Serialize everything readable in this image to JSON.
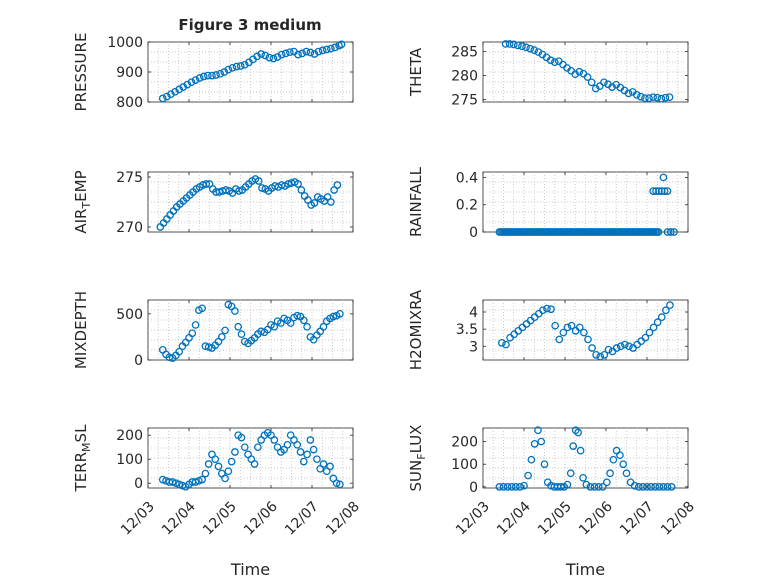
{
  "figure_title": "Figure 3 medium",
  "colors": {
    "marker": "#0072bd",
    "axis": "#262626",
    "grid": "#b8b8b8"
  },
  "chart_data": [
    {
      "type": "scatter",
      "ylabel": "PRESSURE",
      "ylim": [
        800,
        1000
      ],
      "yticks": [
        800,
        900,
        1000
      ],
      "xlim": [
        0,
        5
      ],
      "xticklabels": [],
      "xlabel": "",
      "grid": "on",
      "x": [
        0.36,
        0.46,
        0.56,
        0.66,
        0.76,
        0.86,
        0.96,
        1.06,
        1.16,
        1.26,
        1.36,
        1.46,
        1.56,
        1.66,
        1.76,
        1.86,
        1.96,
        2.06,
        2.16,
        2.26,
        2.36,
        2.46,
        2.56,
        2.66,
        2.76,
        2.86,
        2.96,
        3.06,
        3.16,
        3.26,
        3.36,
        3.46,
        3.56,
        3.66,
        3.76,
        3.86,
        3.96,
        4.06,
        4.16,
        4.26,
        4.36,
        4.46,
        4.56,
        4.66,
        4.72
      ],
      "y": [
        812,
        818,
        826,
        834,
        842,
        850,
        858,
        866,
        873,
        880,
        885,
        888,
        888,
        890,
        894,
        900,
        908,
        914,
        918,
        920,
        924,
        932,
        942,
        952,
        960,
        955,
        948,
        945,
        950,
        958,
        962,
        966,
        968,
        958,
        962,
        968,
        965,
        960,
        968,
        972,
        975,
        978,
        982,
        988,
        992
      ]
    },
    {
      "type": "scatter",
      "ylabel": "THETA",
      "ylim": [
        274.5,
        287
      ],
      "yticks": [
        275,
        280,
        285
      ],
      "xlim": [
        0,
        5
      ],
      "xticklabels": [],
      "xlabel": "",
      "grid": "on",
      "x": [
        0.55,
        0.65,
        0.75,
        0.85,
        0.95,
        1.05,
        1.15,
        1.25,
        1.35,
        1.45,
        1.55,
        1.65,
        1.75,
        1.85,
        1.95,
        2.05,
        2.15,
        2.25,
        2.35,
        2.45,
        2.55,
        2.65,
        2.75,
        2.85,
        2.95,
        3.05,
        3.15,
        3.25,
        3.35,
        3.45,
        3.55,
        3.65,
        3.75,
        3.85,
        3.95,
        4.05,
        4.15,
        4.25,
        4.35,
        4.45,
        4.55
      ],
      "y": [
        286.6,
        286.6,
        286.5,
        286.3,
        286.1,
        285.9,
        285.6,
        285.3,
        284.9,
        284.4,
        283.8,
        283.2,
        282.8,
        283.0,
        282.3,
        281.6,
        281.0,
        280.3,
        280.8,
        280.4,
        279.7,
        278.6,
        277.3,
        277.8,
        278.6,
        278.2,
        277.6,
        278.1,
        277.5,
        276.9,
        276.3,
        276.6,
        276.0,
        275.6,
        275.3,
        275.3,
        275.5,
        275.4,
        275.2,
        275.4,
        275.5
      ]
    },
    {
      "type": "scatter",
      "ylabel": "AIR_TEMP",
      "ylim": [
        269.5,
        275.5
      ],
      "yticks": [
        270,
        275
      ],
      "xlim": [
        0,
        5
      ],
      "xticklabels": [],
      "xlabel": "",
      "grid": "on",
      "x": [
        0.3,
        0.38,
        0.46,
        0.54,
        0.62,
        0.7,
        0.78,
        0.86,
        0.94,
        1.02,
        1.1,
        1.18,
        1.26,
        1.34,
        1.42,
        1.5,
        1.58,
        1.66,
        1.74,
        1.82,
        1.9,
        1.98,
        2.06,
        2.14,
        2.22,
        2.3,
        2.38,
        2.46,
        2.54,
        2.62,
        2.7,
        2.78,
        2.86,
        2.94,
        3.02,
        3.1,
        3.18,
        3.26,
        3.34,
        3.42,
        3.5,
        3.58,
        3.66,
        3.74,
        3.82,
        3.9,
        3.98,
        4.06,
        4.14,
        4.22,
        4.3,
        4.38,
        4.46,
        4.54,
        4.62
      ],
      "y": [
        270.0,
        270.4,
        270.8,
        271.2,
        271.6,
        272.0,
        272.3,
        272.6,
        272.9,
        273.2,
        273.5,
        273.8,
        274.0,
        274.2,
        274.3,
        274.3,
        273.8,
        273.5,
        273.5,
        273.6,
        273.7,
        273.6,
        273.4,
        273.8,
        273.6,
        273.7,
        274.0,
        274.3,
        274.6,
        274.8,
        274.6,
        273.9,
        273.8,
        273.6,
        273.9,
        274.1,
        274.0,
        274.2,
        274.1,
        274.3,
        274.4,
        274.5,
        274.3,
        273.7,
        273.1,
        272.7,
        272.2,
        272.4,
        273.0,
        272.8,
        272.6,
        273.0,
        272.5,
        273.7,
        274.2
      ]
    },
    {
      "type": "scatter",
      "ylabel": "RAINFALL",
      "ylim": [
        0,
        0.44
      ],
      "yticks": [
        0,
        0.2,
        0.4
      ],
      "xlim": [
        0,
        5
      ],
      "xticklabels": [],
      "xlabel": "",
      "grid": "on",
      "rain_segment": {
        "x_start": 0.4,
        "x_end": 4.3,
        "y": 0
      },
      "x": [
        4.15,
        4.22,
        4.29,
        4.36,
        4.43,
        4.5,
        4.4,
        4.5,
        4.58,
        4.66
      ],
      "y": [
        0.3,
        0.3,
        0.3,
        0.3,
        0.3,
        0.3,
        0.4,
        0,
        0,
        0
      ]
    },
    {
      "type": "scatter",
      "ylabel": "MIXDEPTH",
      "ylim": [
        0,
        650
      ],
      "yticks": [
        0,
        500
      ],
      "xlim": [
        0,
        5
      ],
      "xticklabels": [],
      "xlabel": "",
      "grid": "on",
      "x": [
        0.36,
        0.44,
        0.52,
        0.6,
        0.68,
        0.76,
        0.84,
        0.92,
        1.0,
        1.08,
        1.16,
        1.24,
        1.32,
        1.4,
        1.48,
        1.56,
        1.64,
        1.72,
        1.8,
        1.88,
        1.96,
        2.04,
        2.12,
        2.2,
        2.28,
        2.36,
        2.44,
        2.52,
        2.6,
        2.68,
        2.76,
        2.84,
        2.92,
        3.0,
        3.08,
        3.16,
        3.24,
        3.32,
        3.4,
        3.48,
        3.56,
        3.64,
        3.72,
        3.8,
        3.88,
        3.96,
        4.04,
        4.12,
        4.2,
        4.28,
        4.36,
        4.44,
        4.52,
        4.6,
        4.68
      ],
      "y": [
        110,
        60,
        30,
        20,
        50,
        90,
        150,
        190,
        240,
        290,
        380,
        540,
        560,
        150,
        140,
        130,
        160,
        200,
        250,
        320,
        600,
        580,
        530,
        360,
        280,
        200,
        180,
        210,
        240,
        280,
        310,
        300,
        330,
        380,
        360,
        420,
        400,
        450,
        430,
        400,
        460,
        480,
        470,
        430,
        360,
        250,
        220,
        270,
        310,
        360,
        420,
        450,
        470,
        480,
        500
      ]
    },
    {
      "type": "scatter",
      "ylabel": "H2OMIXRA",
      "ylim": [
        2.6,
        4.35
      ],
      "yticks": [
        3,
        3.5,
        4
      ],
      "xlim": [
        0,
        5
      ],
      "xticklabels": [],
      "xlabel": "",
      "grid": "on",
      "x": [
        0.46,
        0.56,
        0.66,
        0.76,
        0.86,
        0.96,
        1.06,
        1.16,
        1.26,
        1.36,
        1.46,
        1.56,
        1.66,
        1.76,
        1.86,
        1.96,
        2.06,
        2.16,
        2.26,
        2.36,
        2.46,
        2.56,
        2.66,
        2.76,
        2.86,
        2.96,
        3.06,
        3.16,
        3.26,
        3.36,
        3.46,
        3.56,
        3.66,
        3.76,
        3.86,
        3.96,
        4.06,
        4.16,
        4.26,
        4.36,
        4.46,
        4.56
      ],
      "y": [
        3.1,
        3.05,
        3.25,
        3.35,
        3.45,
        3.55,
        3.65,
        3.75,
        3.85,
        3.95,
        4.05,
        4.1,
        4.08,
        3.6,
        3.2,
        3.4,
        3.55,
        3.6,
        3.45,
        3.55,
        3.4,
        3.2,
        2.95,
        2.75,
        2.7,
        2.75,
        2.9,
        2.85,
        2.95,
        3.0,
        3.05,
        3.0,
        2.95,
        3.05,
        3.15,
        3.25,
        3.4,
        3.55,
        3.7,
        3.85,
        4.05,
        4.2
      ]
    },
    {
      "type": "scatter",
      "ylabel": "TERR_MSL",
      "ylim": [
        -20,
        230
      ],
      "yticks": [
        0,
        100,
        200
      ],
      "xlim": [
        0,
        5
      ],
      "xticklabels": [
        "12/03",
        "12/04",
        "12/05",
        "12/06",
        "12/07",
        "12/08"
      ],
      "xlabel": "Time",
      "grid": "on",
      "x": [
        0.36,
        0.44,
        0.52,
        0.6,
        0.68,
        0.76,
        0.84,
        0.92,
        1.0,
        1.08,
        1.16,
        1.24,
        1.32,
        1.4,
        1.48,
        1.56,
        1.64,
        1.72,
        1.8,
        1.88,
        1.96,
        2.04,
        2.12,
        2.2,
        2.28,
        2.36,
        2.44,
        2.52,
        2.6,
        2.68,
        2.76,
        2.84,
        2.92,
        3.0,
        3.08,
        3.16,
        3.24,
        3.32,
        3.4,
        3.48,
        3.56,
        3.64,
        3.72,
        3.8,
        3.88,
        3.96,
        4.04,
        4.12,
        4.2,
        4.28,
        4.36,
        4.44,
        4.52,
        4.6,
        4.68
      ],
      "y": [
        15,
        10,
        5,
        5,
        0,
        -5,
        -10,
        -15,
        -5,
        5,
        5,
        10,
        15,
        40,
        80,
        120,
        100,
        70,
        40,
        20,
        50,
        90,
        130,
        200,
        190,
        150,
        120,
        100,
        80,
        150,
        180,
        200,
        210,
        200,
        180,
        150,
        130,
        140,
        160,
        200,
        180,
        160,
        130,
        90,
        120,
        180,
        140,
        100,
        60,
        80,
        50,
        70,
        20,
        0,
        -5
      ]
    },
    {
      "type": "scatter",
      "ylabel": "SUN_FLUX",
      "ylim": [
        -5,
        260
      ],
      "yticks": [
        0,
        100,
        200
      ],
      "xlim": [
        0,
        5
      ],
      "xticklabels": [
        "12/03",
        "12/04",
        "12/05",
        "12/06",
        "12/07",
        "12/08"
      ],
      "xlabel": "Time",
      "grid": "on",
      "x": [
        0.4,
        0.5,
        0.6,
        0.7,
        0.8,
        0.9,
        1.0,
        1.1,
        1.18,
        1.26,
        1.34,
        1.42,
        1.5,
        1.58,
        1.66,
        1.74,
        1.82,
        1.9,
        1.98,
        2.06,
        2.14,
        2.2,
        2.26,
        2.32,
        2.38,
        2.44,
        2.52,
        2.62,
        2.72,
        2.82,
        2.92,
        3.02,
        3.1,
        3.18,
        3.26,
        3.34,
        3.42,
        3.5,
        3.6,
        3.7,
        3.8,
        3.9,
        4.0,
        4.1,
        4.2,
        4.3,
        4.4,
        4.5,
        4.6
      ],
      "y": [
        0,
        0,
        0,
        0,
        0,
        0,
        5,
        50,
        120,
        190,
        250,
        200,
        100,
        20,
        5,
        0,
        0,
        0,
        0,
        10,
        60,
        180,
        250,
        240,
        160,
        40,
        10,
        0,
        0,
        0,
        0,
        20,
        60,
        120,
        160,
        140,
        100,
        60,
        20,
        5,
        0,
        0,
        0,
        0,
        0,
        0,
        0,
        0,
        0
      ]
    }
  ]
}
